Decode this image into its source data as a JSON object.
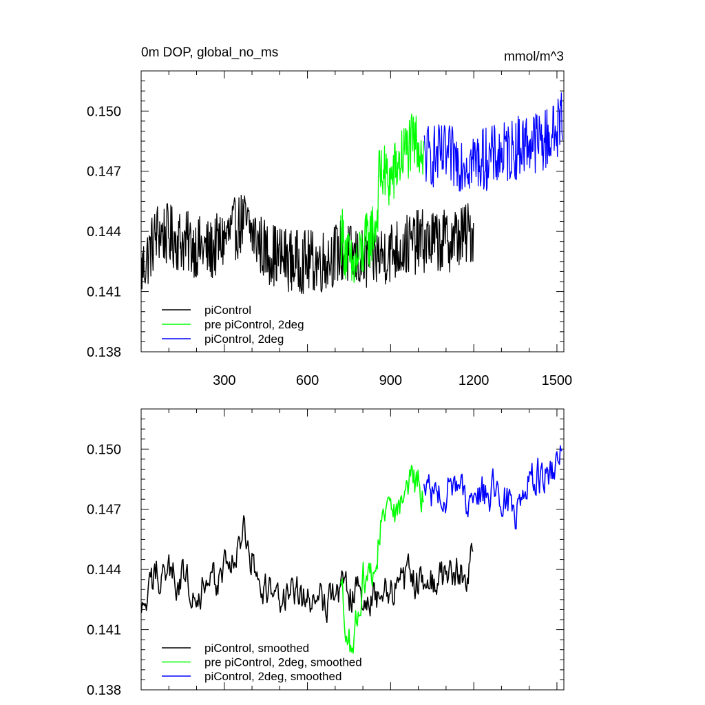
{
  "chart_data": [
    {
      "type": "line",
      "title": "0m DOP, global_no_ms",
      "units": "mmol/m^3",
      "xlim": [
        0,
        1525
      ],
      "ylim": [
        0.138,
        0.152
      ],
      "xticks": [
        300,
        600,
        900,
        1200,
        1500
      ],
      "xticklabels": [
        "300",
        "600",
        "900",
        "1200",
        "1500"
      ],
      "yticks": [
        0.138,
        0.141,
        0.144,
        0.147,
        0.15
      ],
      "yticklabels": [
        "0.138",
        "0.141",
        "0.144",
        "0.147",
        "0.150"
      ],
      "legend_position": "lower-left",
      "series": [
        {
          "name": "piControl",
          "color": "#000000",
          "x_start": 1,
          "x_end": 1200,
          "sample_x": [
            1,
            60,
            150,
            250,
            370,
            450,
            550,
            650,
            720,
            800,
            900,
            1000,
            1100,
            1200
          ],
          "sample_y": [
            0.142,
            0.144,
            0.1435,
            0.143,
            0.1445,
            0.143,
            0.1425,
            0.1425,
            0.143,
            0.1425,
            0.143,
            0.1435,
            0.1435,
            0.144
          ]
        },
        {
          "name": "pre piControl, 2deg",
          "color": "#00ff00",
          "x_start": 720,
          "x_end": 1020,
          "sample_x": [
            720,
            760,
            800,
            850,
            860,
            900,
            950,
            1000,
            1020
          ],
          "sample_y": [
            0.144,
            0.142,
            0.143,
            0.1445,
            0.147,
            0.1465,
            0.148,
            0.1485,
            0.1478
          ]
        },
        {
          "name": "piControl, 2deg",
          "color": "#0000ff",
          "x_start": 1020,
          "x_end": 1520,
          "sample_x": [
            1020,
            1100,
            1200,
            1300,
            1400,
            1450,
            1500,
            1520
          ],
          "sample_y": [
            0.1478,
            0.1477,
            0.1475,
            0.1478,
            0.1485,
            0.1485,
            0.149,
            0.15
          ]
        }
      ]
    },
    {
      "type": "line",
      "title": "",
      "xlim": [
        0,
        1525
      ],
      "ylim": [
        0.138,
        0.152
      ],
      "xticks": [
        300,
        600,
        900,
        1200,
        1500
      ],
      "yticks": [
        0.138,
        0.141,
        0.144,
        0.147,
        0.15
      ],
      "yticklabels": [
        "0.138",
        "0.141",
        "0.144",
        "0.147",
        "0.150"
      ],
      "legend_position": "lower-left",
      "series": [
        {
          "name": "piControl, smoothed",
          "color": "#000000",
          "x_start": 1,
          "x_end": 1200,
          "sample_x": [
            1,
            60,
            150,
            250,
            370,
            450,
            550,
            650,
            720,
            800,
            900,
            1000,
            1100,
            1200
          ],
          "sample_y": [
            0.1415,
            0.144,
            0.1435,
            0.143,
            0.1455,
            0.143,
            0.1425,
            0.1425,
            0.143,
            0.1425,
            0.143,
            0.1435,
            0.1435,
            0.1443
          ]
        },
        {
          "name": "pre piControl, 2deg, smoothed",
          "color": "#00ff00",
          "x_start": 720,
          "x_end": 1020,
          "sample_x": [
            720,
            760,
            800,
            850,
            870,
            900,
            950,
            1000,
            1020
          ],
          "sample_y": [
            0.143,
            0.14,
            0.1435,
            0.1445,
            0.147,
            0.1465,
            0.148,
            0.1483,
            0.1478
          ]
        },
        {
          "name": "piControl, 2deg, smoothed",
          "color": "#0000ff",
          "x_start": 1020,
          "x_end": 1520,
          "sample_x": [
            1020,
            1100,
            1200,
            1300,
            1350,
            1400,
            1450,
            1500,
            1520
          ],
          "sample_y": [
            0.1478,
            0.148,
            0.1477,
            0.1478,
            0.1468,
            0.1485,
            0.1488,
            0.149,
            0.1502
          ]
        }
      ]
    }
  ]
}
